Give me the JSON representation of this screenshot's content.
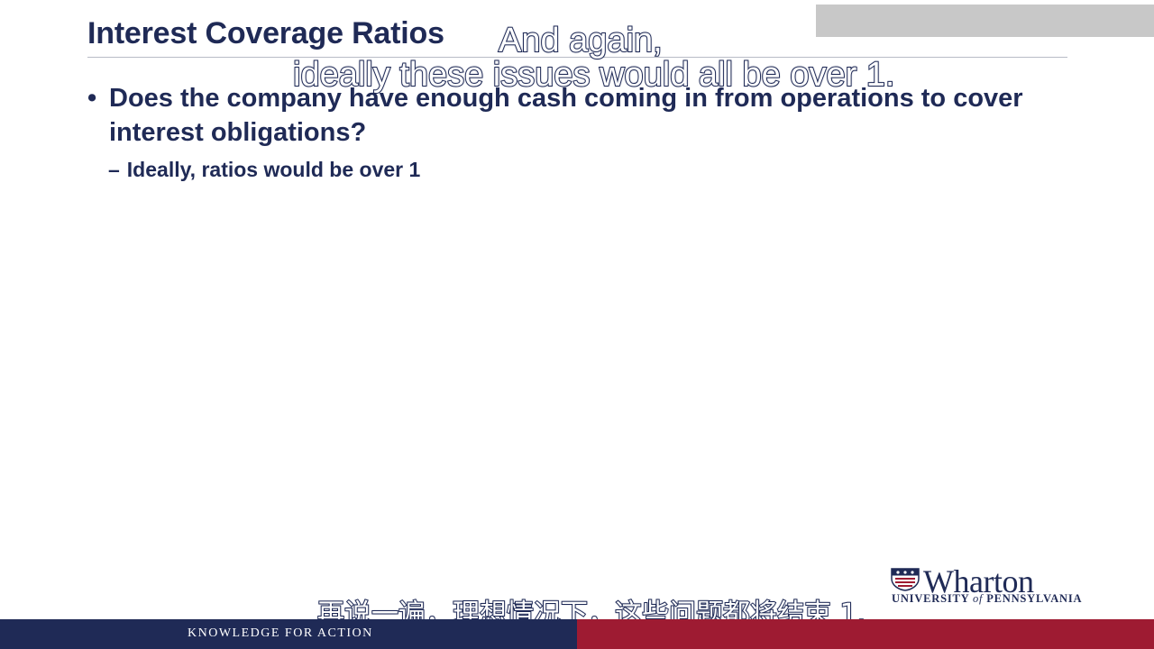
{
  "slide": {
    "title": "Interest Coverage Ratios",
    "bullet_marker": "•",
    "bullet_text": "Does the company have enough cash coming in from operations to cover interest obligations?",
    "sub_marker": "–",
    "sub_bullet_text": "Ideally, ratios would be over 1"
  },
  "subtitles": {
    "english_line_1": "And again,",
    "english_line_2": "ideally these issues would all be over 1.",
    "chinese": "再说一遍，理想情况下，这些问题都将结束 1."
  },
  "logo": {
    "name": "Wharton",
    "university_prefix": "UNIVERSITY ",
    "university_of": "of",
    "university_suffix": " PENNSYLVANIA"
  },
  "footer": {
    "tagline": "KNOWLEDGE FOR ACTION"
  },
  "colors": {
    "navy": "#1f2a56",
    "crimson": "#9e1b32",
    "overlay_gray": "#c8c8c8"
  }
}
